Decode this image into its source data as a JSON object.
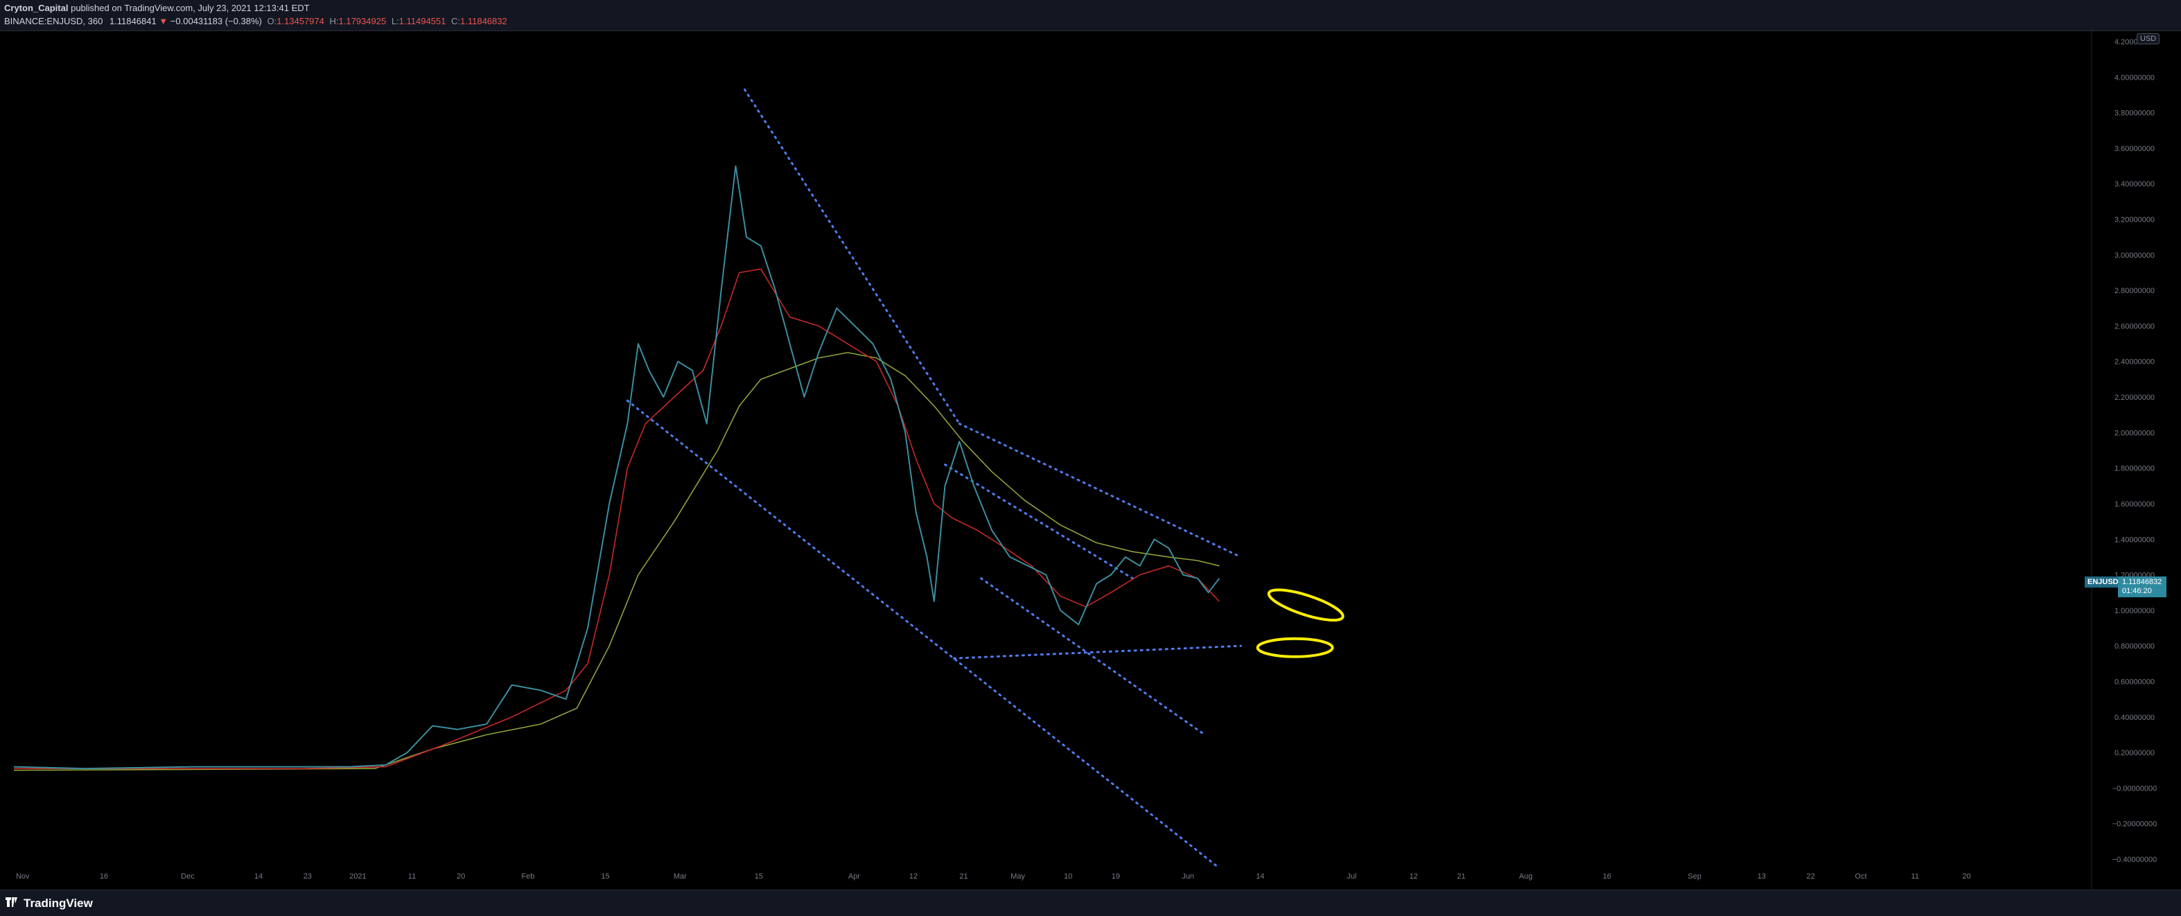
{
  "header": {
    "publisher": "Cryton_Capital",
    "published_text": "published on TradingView.com, July 23, 2021 12:13:41 EDT",
    "symbol": "BINANCE:ENJUSD, 360",
    "last": "1.11846841",
    "change_arrow": "▼",
    "change": "−0.00431183 (−0.38%)",
    "open_label": "O:",
    "open": "1.13457974",
    "high_label": "H:",
    "high": "1.17934925",
    "low_label": "L:",
    "low": "1.11494551",
    "close_label": "C:",
    "close": "1.11846832"
  },
  "currency_badge": "USD",
  "price_tag": {
    "symbol": "ENJUSD",
    "price": "1.11846832",
    "countdown": "01:46:20"
  },
  "footer": {
    "brand": "TradingView"
  },
  "colors": {
    "background": "#000000",
    "price": "#3a8ea0",
    "ma_fast": "#c62828",
    "ma_slow": "#8ba33a",
    "trendline": "#4f7df0",
    "highlight": "#ffee00"
  },
  "chart_data": {
    "type": "line",
    "x_ticks": [
      "Nov",
      "16",
      "Dec",
      "14",
      "23",
      "2021",
      "11",
      "20",
      "Feb",
      "15",
      "Mar",
      "15",
      "Apr",
      "12",
      "21",
      "May",
      "10",
      "19",
      "Jun",
      "14",
      "Jul",
      "12",
      "21",
      "Aug",
      "16",
      "Sep",
      "13",
      "22",
      "Oct",
      "11",
      "20"
    ],
    "y_ticks": [
      "4.20000000",
      "4.00000000",
      "3.80000000",
      "3.60000000",
      "3.40000000",
      "3.20000000",
      "3.00000000",
      "2.80000000",
      "2.60000000",
      "2.40000000",
      "2.20000000",
      "2.00000000",
      "1.80000000",
      "1.60000000",
      "1.40000000",
      "1.20000000",
      "1.00000000",
      "0.80000000",
      "0.60000000",
      "0.40000000",
      "0.20000000",
      "−0.00000000",
      "−0.20000000",
      "−0.40000000"
    ],
    "ylim": [
      -0.45,
      4.25
    ],
    "series": [
      {
        "key": "price",
        "points": [
          [
            0.0,
            0.12
          ],
          [
            40.0,
            0.11
          ],
          [
            100.0,
            0.12
          ],
          [
            140.0,
            0.12
          ],
          [
            186.0,
            0.12
          ],
          [
            206.0,
            0.13
          ],
          [
            218.0,
            0.2
          ],
          [
            232.0,
            0.35
          ],
          [
            246.0,
            0.33
          ],
          [
            262.0,
            0.36
          ],
          [
            276.0,
            0.58
          ],
          [
            292.0,
            0.55
          ],
          [
            306.0,
            0.5
          ],
          [
            318.0,
            0.9
          ],
          [
            330.0,
            1.6
          ],
          [
            340.0,
            2.05
          ],
          [
            346.0,
            2.5
          ],
          [
            352.0,
            2.35
          ],
          [
            360.0,
            2.2
          ],
          [
            368.0,
            2.4
          ],
          [
            376.0,
            2.35
          ],
          [
            384.0,
            2.05
          ],
          [
            392.0,
            2.8
          ],
          [
            400.0,
            3.5
          ],
          [
            406.0,
            3.1
          ],
          [
            414.0,
            3.05
          ],
          [
            422.0,
            2.8
          ],
          [
            430.0,
            2.5
          ],
          [
            438.0,
            2.2
          ],
          [
            446.0,
            2.45
          ],
          [
            456.0,
            2.7
          ],
          [
            466.0,
            2.6
          ],
          [
            476.0,
            2.5
          ],
          [
            486.0,
            2.3
          ],
          [
            494.0,
            2.0
          ],
          [
            500.0,
            1.55
          ],
          [
            506.0,
            1.3
          ],
          [
            510.0,
            1.05
          ],
          [
            516.0,
            1.7
          ],
          [
            524.0,
            1.95
          ],
          [
            532.0,
            1.7
          ],
          [
            542.0,
            1.45
          ],
          [
            552.0,
            1.3
          ],
          [
            562.0,
            1.25
          ],
          [
            572.0,
            1.2
          ],
          [
            580.0,
            1.0
          ],
          [
            590.0,
            0.92
          ],
          [
            600.0,
            1.15
          ],
          [
            608.0,
            1.2
          ],
          [
            616.0,
            1.3
          ],
          [
            624.0,
            1.25
          ],
          [
            632.0,
            1.4
          ],
          [
            640.0,
            1.35
          ],
          [
            648.0,
            1.2
          ],
          [
            656.0,
            1.18
          ],
          [
            662.0,
            1.1
          ],
          [
            668.0,
            1.18
          ]
        ]
      },
      {
        "key": "ma_fast",
        "points": [
          [
            0.0,
            0.11
          ],
          [
            160.0,
            0.11
          ],
          [
            206.0,
            0.12
          ],
          [
            240.0,
            0.25
          ],
          [
            276.0,
            0.4
          ],
          [
            306.0,
            0.55
          ],
          [
            318.0,
            0.7
          ],
          [
            330.0,
            1.2
          ],
          [
            340.0,
            1.8
          ],
          [
            350.0,
            2.05
          ],
          [
            366.0,
            2.2
          ],
          [
            382.0,
            2.35
          ],
          [
            392.0,
            2.6
          ],
          [
            402.0,
            2.9
          ],
          [
            414.0,
            2.92
          ],
          [
            430.0,
            2.65
          ],
          [
            446.0,
            2.6
          ],
          [
            462.0,
            2.5
          ],
          [
            478.0,
            2.4
          ],
          [
            490.0,
            2.15
          ],
          [
            500.0,
            1.85
          ],
          [
            510.0,
            1.6
          ],
          [
            520.0,
            1.52
          ],
          [
            534.0,
            1.45
          ],
          [
            548.0,
            1.36
          ],
          [
            564.0,
            1.25
          ],
          [
            580.0,
            1.08
          ],
          [
            594.0,
            1.02
          ],
          [
            608.0,
            1.1
          ],
          [
            624.0,
            1.2
          ],
          [
            640.0,
            1.25
          ],
          [
            656.0,
            1.18
          ],
          [
            668.0,
            1.05
          ]
        ]
      },
      {
        "key": "ma_slow",
        "points": [
          [
            0.0,
            0.1
          ],
          [
            200.0,
            0.11
          ],
          [
            232.0,
            0.22
          ],
          [
            262.0,
            0.3
          ],
          [
            292.0,
            0.36
          ],
          [
            312.0,
            0.45
          ],
          [
            330.0,
            0.8
          ],
          [
            346.0,
            1.2
          ],
          [
            366.0,
            1.5
          ],
          [
            390.0,
            1.9
          ],
          [
            402.0,
            2.15
          ],
          [
            414.0,
            2.3
          ],
          [
            430.0,
            2.36
          ],
          [
            446.0,
            2.42
          ],
          [
            462.0,
            2.45
          ],
          [
            478.0,
            2.42
          ],
          [
            494.0,
            2.32
          ],
          [
            510.0,
            2.15
          ],
          [
            526.0,
            1.95
          ],
          [
            542.0,
            1.78
          ],
          [
            560.0,
            1.62
          ],
          [
            580.0,
            1.48
          ],
          [
            600.0,
            1.38
          ],
          [
            620.0,
            1.33
          ],
          [
            640.0,
            1.3
          ],
          [
            656.0,
            1.28
          ],
          [
            668.0,
            1.25
          ]
        ]
      }
    ],
    "trendlines": [
      [
        [
          405.0,
          3.93
        ],
        [
          524.0,
          2.05
        ]
      ],
      [
        [
          524.0,
          2.05
        ],
        [
          680.0,
          1.3
        ]
      ],
      [
        [
          340.0,
          2.18
        ],
        [
          668.0,
          -0.45
        ]
      ],
      [
        [
          521.0,
          0.73
        ],
        [
          680.0,
          0.8
        ]
      ],
      [
        [
          516.0,
          1.82
        ],
        [
          620.0,
          1.18
        ]
      ],
      [
        [
          536.0,
          1.18
        ],
        [
          660.0,
          0.3
        ]
      ]
    ],
    "highlight_ellipses": [
      {
        "x": 716.0,
        "y": 1.03
      },
      {
        "x": 710.0,
        "y": 0.79
      }
    ]
  }
}
